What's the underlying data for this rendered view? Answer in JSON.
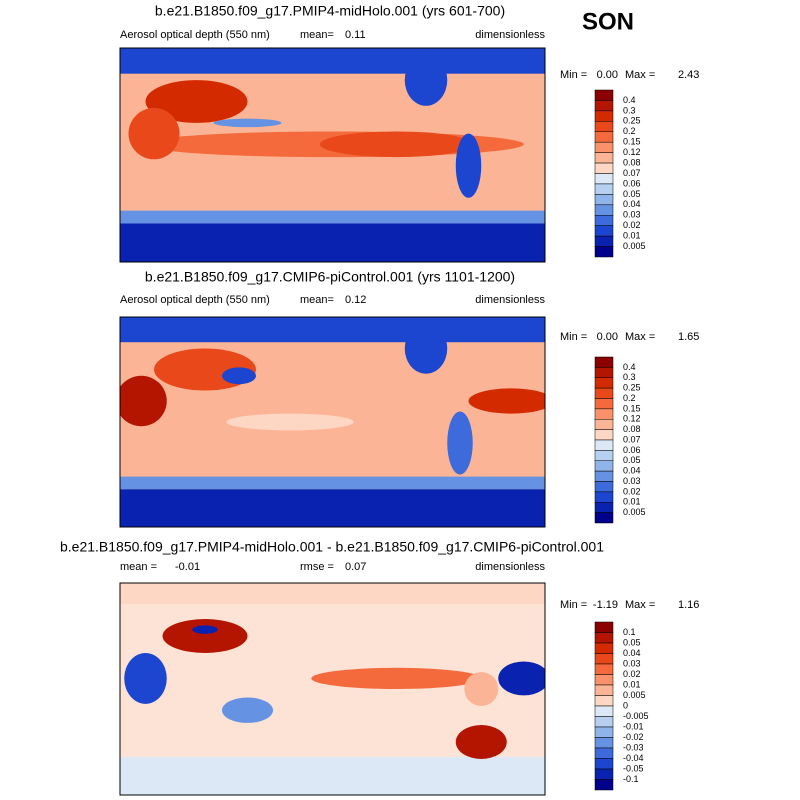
{
  "header": {
    "season": "SON"
  },
  "panels": [
    {
      "title": "b.e21.B1850.f09_g17.PMIP4-midHolo.001 (yrs 601-700)",
      "left": "Aerosol optical depth (550 nm)",
      "stat_label": "mean=",
      "stat_value": "0.11",
      "units": "dimensionless",
      "min_label": "Min =",
      "min": "0.00",
      "max_label": "Max =",
      "max": "2.43",
      "levels": [
        "0.4",
        "0.3",
        "0.25",
        "0.2",
        "0.15",
        "0.12",
        "0.08",
        "0.07",
        "0.06",
        "0.05",
        "0.04",
        "0.03",
        "0.02",
        "0.01",
        "0.005"
      ]
    },
    {
      "title": "b.e21.B1850.f09_g17.CMIP6-piControl.001 (yrs 1101-1200)",
      "left": "Aerosol optical depth (550 nm)",
      "stat_label": "mean=",
      "stat_value": "0.12",
      "units": "dimensionless",
      "min_label": "Min =",
      "min": "0.00",
      "max_label": "Max =",
      "max": "1.65",
      "levels": [
        "0.4",
        "0.3",
        "0.25",
        "0.2",
        "0.15",
        "0.12",
        "0.08",
        "0.07",
        "0.06",
        "0.05",
        "0.04",
        "0.03",
        "0.02",
        "0.01",
        "0.005"
      ]
    },
    {
      "title": "b.e21.B1850.f09_g17.PMIP4-midHolo.001 - b.e21.B1850.f09_g17.CMIP6-piControl.001",
      "left": "mean =",
      "left_value": "-0.01",
      "stat_label": "rmse =",
      "stat_value": "0.07",
      "units": "dimensionless",
      "min_label": "Min =",
      "min": "-1.19",
      "max_label": "Max =",
      "max": "1.16",
      "levels": [
        "0.1",
        "0.05",
        "0.04",
        "0.03",
        "0.02",
        "0.01",
        "0.005",
        "0",
        "-0.005",
        "-0.01",
        "-0.02",
        "-0.03",
        "-0.04",
        "-0.05",
        "-0.1"
      ]
    }
  ]
}
